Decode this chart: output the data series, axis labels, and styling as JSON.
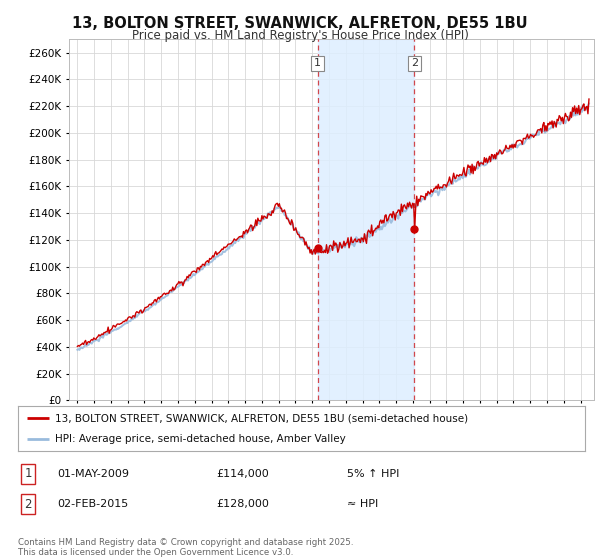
{
  "title": "13, BOLTON STREET, SWANWICK, ALFRETON, DE55 1BU",
  "subtitle": "Price paid vs. HM Land Registry's House Price Index (HPI)",
  "ylim": [
    0,
    270000
  ],
  "yticks": [
    0,
    20000,
    40000,
    60000,
    80000,
    100000,
    120000,
    140000,
    160000,
    180000,
    200000,
    220000,
    240000,
    260000
  ],
  "background_color": "#ffffff",
  "grid_color": "#d8d8d8",
  "sale1_date": "01-MAY-2009",
  "sale1_price": 114000,
  "sale1_hpi": "5% ↑ HPI",
  "sale2_date": "02-FEB-2015",
  "sale2_price": 128000,
  "sale2_hpi": "≈ HPI",
  "legend_house": "13, BOLTON STREET, SWANWICK, ALFRETON, DE55 1BU (semi-detached house)",
  "legend_hpi": "HPI: Average price, semi-detached house, Amber Valley",
  "footer": "Contains HM Land Registry data © Crown copyright and database right 2025.\nThis data is licensed under the Open Government Licence v3.0.",
  "line_color_house": "#cc0000",
  "line_color_hpi": "#99bbdd",
  "shade_color": "#ddeeff",
  "marker_color": "#cc0000",
  "sale1_x": 2009.33,
  "sale2_x": 2015.08,
  "xlim_left": 1994.5,
  "xlim_right": 2025.8
}
